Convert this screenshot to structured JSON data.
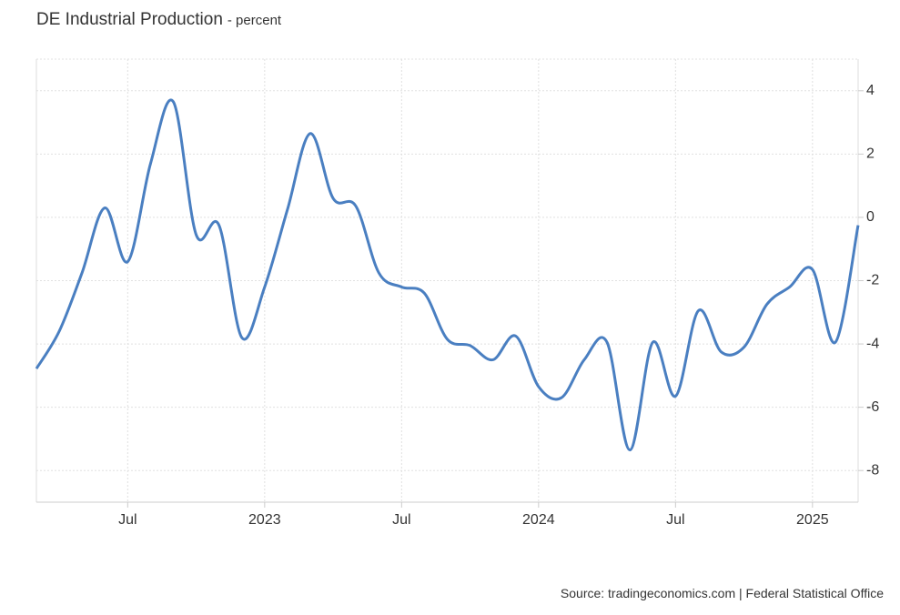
{
  "chart_data": {
    "type": "line",
    "title": "DE Industrial Production",
    "subtitle": "- percent",
    "source": "Source: tradingeconomics.com | Federal Statistical Office",
    "categories": [
      null,
      null,
      null,
      null,
      "Jul",
      null,
      null,
      null,
      null,
      null,
      "2023",
      null,
      null,
      null,
      null,
      null,
      "Jul",
      null,
      null,
      null,
      null,
      null,
      "2024",
      null,
      null,
      null,
      null,
      null,
      "Jul",
      null,
      null,
      null,
      null,
      null,
      "2025",
      null,
      null
    ],
    "series": [
      {
        "name": "DE Industrial Production",
        "color": "#4a7fc1",
        "values": [
          -4.78,
          -3.6,
          -1.75,
          0.3,
          -1.4,
          1.7,
          3.65,
          -0.55,
          -0.25,
          -3.8,
          -2.2,
          0.25,
          2.65,
          0.6,
          0.35,
          -1.75,
          -2.2,
          -2.4,
          -3.85,
          -4.05,
          -4.5,
          -3.75,
          -5.35,
          -5.7,
          -4.5,
          -3.95,
          -7.35,
          -3.95,
          -5.65,
          -2.95,
          -4.25,
          -4.1,
          -2.75,
          -2.2,
          -1.65,
          -3.95,
          -0.25
        ]
      }
    ],
    "ylim": [
      -9,
      5
    ],
    "yticks": [
      4,
      2,
      0,
      -2,
      -4,
      -6,
      -8
    ],
    "grid": true
  }
}
